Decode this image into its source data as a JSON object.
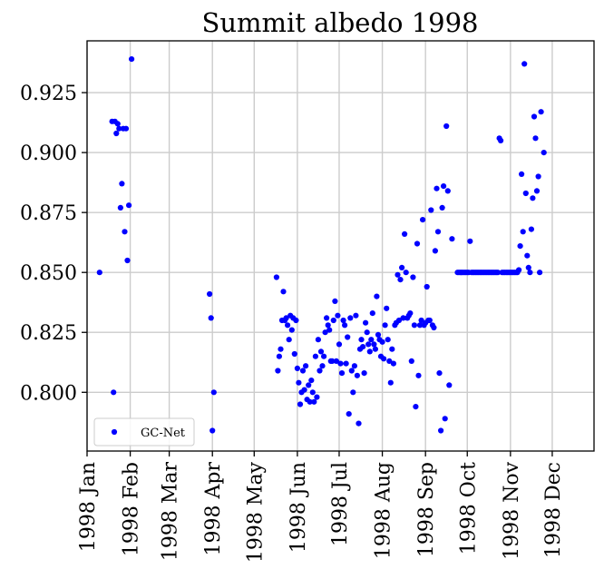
{
  "chart_data": {
    "type": "scatter",
    "title": "Summit albedo 1998",
    "xlabel": "",
    "ylabel": "",
    "x_axis": {
      "type": "date",
      "range": [
        "1998-01-01",
        "1998-12-31"
      ],
      "ticks": [
        {
          "date": "1998-01-01",
          "label": "1998 Jan"
        },
        {
          "date": "1998-02-01",
          "label": "1998 Feb"
        },
        {
          "date": "1998-03-01",
          "label": "1998 Mar"
        },
        {
          "date": "1998-04-01",
          "label": "1998 Apr"
        },
        {
          "date": "1998-05-01",
          "label": "1998 May"
        },
        {
          "date": "1998-06-01",
          "label": "1998 Jun"
        },
        {
          "date": "1998-07-01",
          "label": "1998 Jul"
        },
        {
          "date": "1998-08-01",
          "label": "1998 Aug"
        },
        {
          "date": "1998-09-01",
          "label": "1998 Sep"
        },
        {
          "date": "1998-10-01",
          "label": "1998 Oct"
        },
        {
          "date": "1998-11-01",
          "label": "1998 Nov"
        },
        {
          "date": "1998-12-01",
          "label": "1998 Dec"
        }
      ]
    },
    "y_axis": {
      "range": [
        0.7755,
        0.9466
      ],
      "ticks": [
        {
          "value": 0.8,
          "label": "0.800"
        },
        {
          "value": 0.825,
          "label": "0.825"
        },
        {
          "value": 0.85,
          "label": "0.850"
        },
        {
          "value": 0.875,
          "label": "0.875"
        },
        {
          "value": 0.9,
          "label": "0.900"
        },
        {
          "value": 0.925,
          "label": "0.925"
        }
      ]
    },
    "grid": true,
    "legend": {
      "position": "lower-left",
      "entries": [
        "GC-Net"
      ]
    },
    "series": [
      {
        "name": "GC-Net",
        "color": "#0000ff",
        "marker": "circle",
        "points": [
          [
            "1998-01-10",
            0.85
          ],
          [
            "1998-01-19",
            0.913
          ],
          [
            "1998-01-21",
            0.913
          ],
          [
            "1998-01-20",
            0.8
          ],
          [
            "1998-01-22",
            0.908
          ],
          [
            "1998-01-23",
            0.912
          ],
          [
            "1998-01-24",
            0.91
          ],
          [
            "1998-01-25",
            0.877
          ],
          [
            "1998-01-26",
            0.887
          ],
          [
            "1998-01-27",
            0.91
          ],
          [
            "1998-01-28",
            0.867
          ],
          [
            "1998-01-29",
            0.91
          ],
          [
            "1998-01-30",
            0.855
          ],
          [
            "1998-01-31",
            0.878
          ],
          [
            "1998-02-02",
            0.939
          ],
          [
            "1998-03-30",
            0.841
          ],
          [
            "1998-03-31",
            0.831
          ],
          [
            "1998-04-01",
            0.784
          ],
          [
            "1998-04-02",
            0.8
          ],
          [
            "1998-05-17",
            0.848
          ],
          [
            "1998-05-18",
            0.809
          ],
          [
            "1998-05-19",
            0.815
          ],
          [
            "1998-05-20",
            0.818
          ],
          [
            "1998-05-21",
            0.83
          ],
          [
            "1998-05-22",
            0.842
          ],
          [
            "1998-05-23",
            0.83
          ],
          [
            "1998-05-24",
            0.831
          ],
          [
            "1998-05-25",
            0.828
          ],
          [
            "1998-05-26",
            0.822
          ],
          [
            "1998-05-27",
            0.832
          ],
          [
            "1998-05-28",
            0.826
          ],
          [
            "1998-05-29",
            0.831
          ],
          [
            "1998-05-30",
            0.816
          ],
          [
            "1998-05-31",
            0.83
          ],
          [
            "1998-06-01",
            0.81
          ],
          [
            "1998-06-02",
            0.804
          ],
          [
            "1998-06-03",
            0.795
          ],
          [
            "1998-06-04",
            0.8
          ],
          [
            "1998-06-05",
            0.809
          ],
          [
            "1998-06-06",
            0.801
          ],
          [
            "1998-06-07",
            0.811
          ],
          [
            "1998-06-08",
            0.797
          ],
          [
            "1998-06-09",
            0.803
          ],
          [
            "1998-06-10",
            0.796
          ],
          [
            "1998-06-11",
            0.805
          ],
          [
            "1998-06-12",
            0.8
          ],
          [
            "1998-06-13",
            0.796
          ],
          [
            "1998-06-14",
            0.815
          ],
          [
            "1998-06-15",
            0.798
          ],
          [
            "1998-06-16",
            0.822
          ],
          [
            "1998-06-17",
            0.809
          ],
          [
            "1998-06-18",
            0.817
          ],
          [
            "1998-06-19",
            0.811
          ],
          [
            "1998-06-20",
            0.815
          ],
          [
            "1998-06-21",
            0.825
          ],
          [
            "1998-06-22",
            0.831
          ],
          [
            "1998-06-23",
            0.828
          ],
          [
            "1998-06-24",
            0.826
          ],
          [
            "1998-06-25",
            0.813
          ],
          [
            "1998-06-26",
            0.813
          ],
          [
            "1998-06-27",
            0.83
          ],
          [
            "1998-06-28",
            0.838
          ],
          [
            "1998-06-29",
            0.813
          ],
          [
            "1998-06-30",
            0.832
          ],
          [
            "1998-07-01",
            0.82
          ],
          [
            "1998-07-02",
            0.812
          ],
          [
            "1998-07-03",
            0.808
          ],
          [
            "1998-07-04",
            0.83
          ],
          [
            "1998-07-05",
            0.828
          ],
          [
            "1998-07-06",
            0.812
          ],
          [
            "1998-07-07",
            0.823
          ],
          [
            "1998-07-08",
            0.791
          ],
          [
            "1998-07-09",
            0.831
          ],
          [
            "1998-07-10",
            0.809
          ],
          [
            "1998-07-11",
            0.8
          ],
          [
            "1998-07-12",
            0.811
          ],
          [
            "1998-07-13",
            0.832
          ],
          [
            "1998-07-14",
            0.807
          ],
          [
            "1998-07-15",
            0.787
          ],
          [
            "1998-07-16",
            0.818
          ],
          [
            "1998-07-17",
            0.822
          ],
          [
            "1998-07-18",
            0.819
          ],
          [
            "1998-07-19",
            0.808
          ],
          [
            "1998-07-20",
            0.829
          ],
          [
            "1998-07-21",
            0.825
          ],
          [
            "1998-07-22",
            0.82
          ],
          [
            "1998-07-23",
            0.817
          ],
          [
            "1998-07-24",
            0.822
          ],
          [
            "1998-07-25",
            0.833
          ],
          [
            "1998-07-26",
            0.82
          ],
          [
            "1998-07-27",
            0.818
          ],
          [
            "1998-07-28",
            0.84
          ],
          [
            "1998-07-29",
            0.824
          ],
          [
            "1998-07-30",
            0.822
          ],
          [
            "1998-07-31",
            0.815
          ],
          [
            "1998-08-01",
            0.821
          ],
          [
            "1998-08-02",
            0.814
          ],
          [
            "1998-08-03",
            0.828
          ],
          [
            "1998-08-04",
            0.835
          ],
          [
            "1998-08-05",
            0.822
          ],
          [
            "1998-08-06",
            0.813
          ],
          [
            "1998-08-07",
            0.804
          ],
          [
            "1998-08-08",
            0.818
          ],
          [
            "1998-08-09",
            0.812
          ],
          [
            "1998-08-10",
            0.828
          ],
          [
            "1998-08-11",
            0.829
          ],
          [
            "1998-08-12",
            0.849
          ],
          [
            "1998-08-13",
            0.83
          ],
          [
            "1998-08-14",
            0.847
          ],
          [
            "1998-08-15",
            0.852
          ],
          [
            "1998-08-16",
            0.831
          ],
          [
            "1998-08-17",
            0.866
          ],
          [
            "1998-08-18",
            0.85
          ],
          [
            "1998-08-19",
            0.831
          ],
          [
            "1998-08-20",
            0.832
          ],
          [
            "1998-08-21",
            0.833
          ],
          [
            "1998-08-22",
            0.813
          ],
          [
            "1998-08-23",
            0.848
          ],
          [
            "1998-08-24",
            0.828
          ],
          [
            "1998-08-25",
            0.794
          ],
          [
            "1998-08-26",
            0.862
          ],
          [
            "1998-08-27",
            0.807
          ],
          [
            "1998-08-28",
            0.828
          ],
          [
            "1998-08-29",
            0.83
          ],
          [
            "1998-08-30",
            0.872
          ],
          [
            "1998-08-31",
            0.828
          ],
          [
            "1998-09-01",
            0.829
          ],
          [
            "1998-09-02",
            0.844
          ],
          [
            "1998-09-03",
            0.83
          ],
          [
            "1998-09-04",
            0.83
          ],
          [
            "1998-09-05",
            0.876
          ],
          [
            "1998-09-06",
            0.828
          ],
          [
            "1998-09-07",
            0.827
          ],
          [
            "1998-09-08",
            0.859
          ],
          [
            "1998-09-09",
            0.885
          ],
          [
            "1998-09-10",
            0.867
          ],
          [
            "1998-09-11",
            0.808
          ],
          [
            "1998-09-12",
            0.784
          ],
          [
            "1998-09-13",
            0.877
          ],
          [
            "1998-09-14",
            0.886
          ],
          [
            "1998-09-15",
            0.789
          ],
          [
            "1998-09-16",
            0.911
          ],
          [
            "1998-09-17",
            0.884
          ],
          [
            "1998-09-18",
            0.803
          ],
          [
            "1998-09-20",
            0.864
          ],
          [
            "1998-09-24",
            0.85
          ],
          [
            "1998-09-25",
            0.85
          ],
          [
            "1998-09-26",
            0.85
          ],
          [
            "1998-09-27",
            0.85
          ],
          [
            "1998-09-28",
            0.85
          ],
          [
            "1998-09-29",
            0.85
          ],
          [
            "1998-09-30",
            0.85
          ],
          [
            "1998-10-01",
            0.85
          ],
          [
            "1998-10-02",
            0.85
          ],
          [
            "1998-10-03",
            0.863
          ],
          [
            "1998-10-04",
            0.85
          ],
          [
            "1998-10-05",
            0.85
          ],
          [
            "1998-10-06",
            0.85
          ],
          [
            "1998-10-07",
            0.85
          ],
          [
            "1998-10-08",
            0.85
          ],
          [
            "1998-10-09",
            0.85
          ],
          [
            "1998-10-10",
            0.85
          ],
          [
            "1998-10-11",
            0.85
          ],
          [
            "1998-10-12",
            0.85
          ],
          [
            "1998-10-13",
            0.85
          ],
          [
            "1998-10-14",
            0.85
          ],
          [
            "1998-10-15",
            0.85
          ],
          [
            "1998-10-16",
            0.85
          ],
          [
            "1998-10-17",
            0.85
          ],
          [
            "1998-10-18",
            0.85
          ],
          [
            "1998-10-19",
            0.85
          ],
          [
            "1998-10-20",
            0.85
          ],
          [
            "1998-10-21",
            0.85
          ],
          [
            "1998-10-22",
            0.85
          ],
          [
            "1998-10-23",
            0.85
          ],
          [
            "1998-10-24",
            0.906
          ],
          [
            "1998-10-25",
            0.905
          ],
          [
            "1998-10-26",
            0.85
          ],
          [
            "1998-10-27",
            0.85
          ],
          [
            "1998-10-28",
            0.85
          ],
          [
            "1998-10-29",
            0.85
          ],
          [
            "1998-10-30",
            0.85
          ],
          [
            "1998-10-31",
            0.85
          ],
          [
            "1998-11-01",
            0.85
          ],
          [
            "1998-11-02",
            0.85
          ],
          [
            "1998-11-03",
            0.85
          ],
          [
            "1998-11-04",
            0.85
          ],
          [
            "1998-11-05",
            0.85
          ],
          [
            "1998-11-06",
            0.85
          ],
          [
            "1998-11-07",
            0.851
          ],
          [
            "1998-11-08",
            0.861
          ],
          [
            "1998-11-09",
            0.891
          ],
          [
            "1998-11-10",
            0.867
          ],
          [
            "1998-11-11",
            0.937
          ],
          [
            "1998-11-12",
            0.883
          ],
          [
            "1998-11-13",
            0.857
          ],
          [
            "1998-11-14",
            0.852
          ],
          [
            "1998-11-15",
            0.85
          ],
          [
            "1998-11-16",
            0.868
          ],
          [
            "1998-11-17",
            0.881
          ],
          [
            "1998-11-18",
            0.915
          ],
          [
            "1998-11-19",
            0.906
          ],
          [
            "1998-11-20",
            0.884
          ],
          [
            "1998-11-21",
            0.89
          ],
          [
            "1998-11-22",
            0.85
          ],
          [
            "1998-11-23",
            0.917
          ],
          [
            "1998-11-25",
            0.9
          ]
        ]
      }
    ]
  }
}
